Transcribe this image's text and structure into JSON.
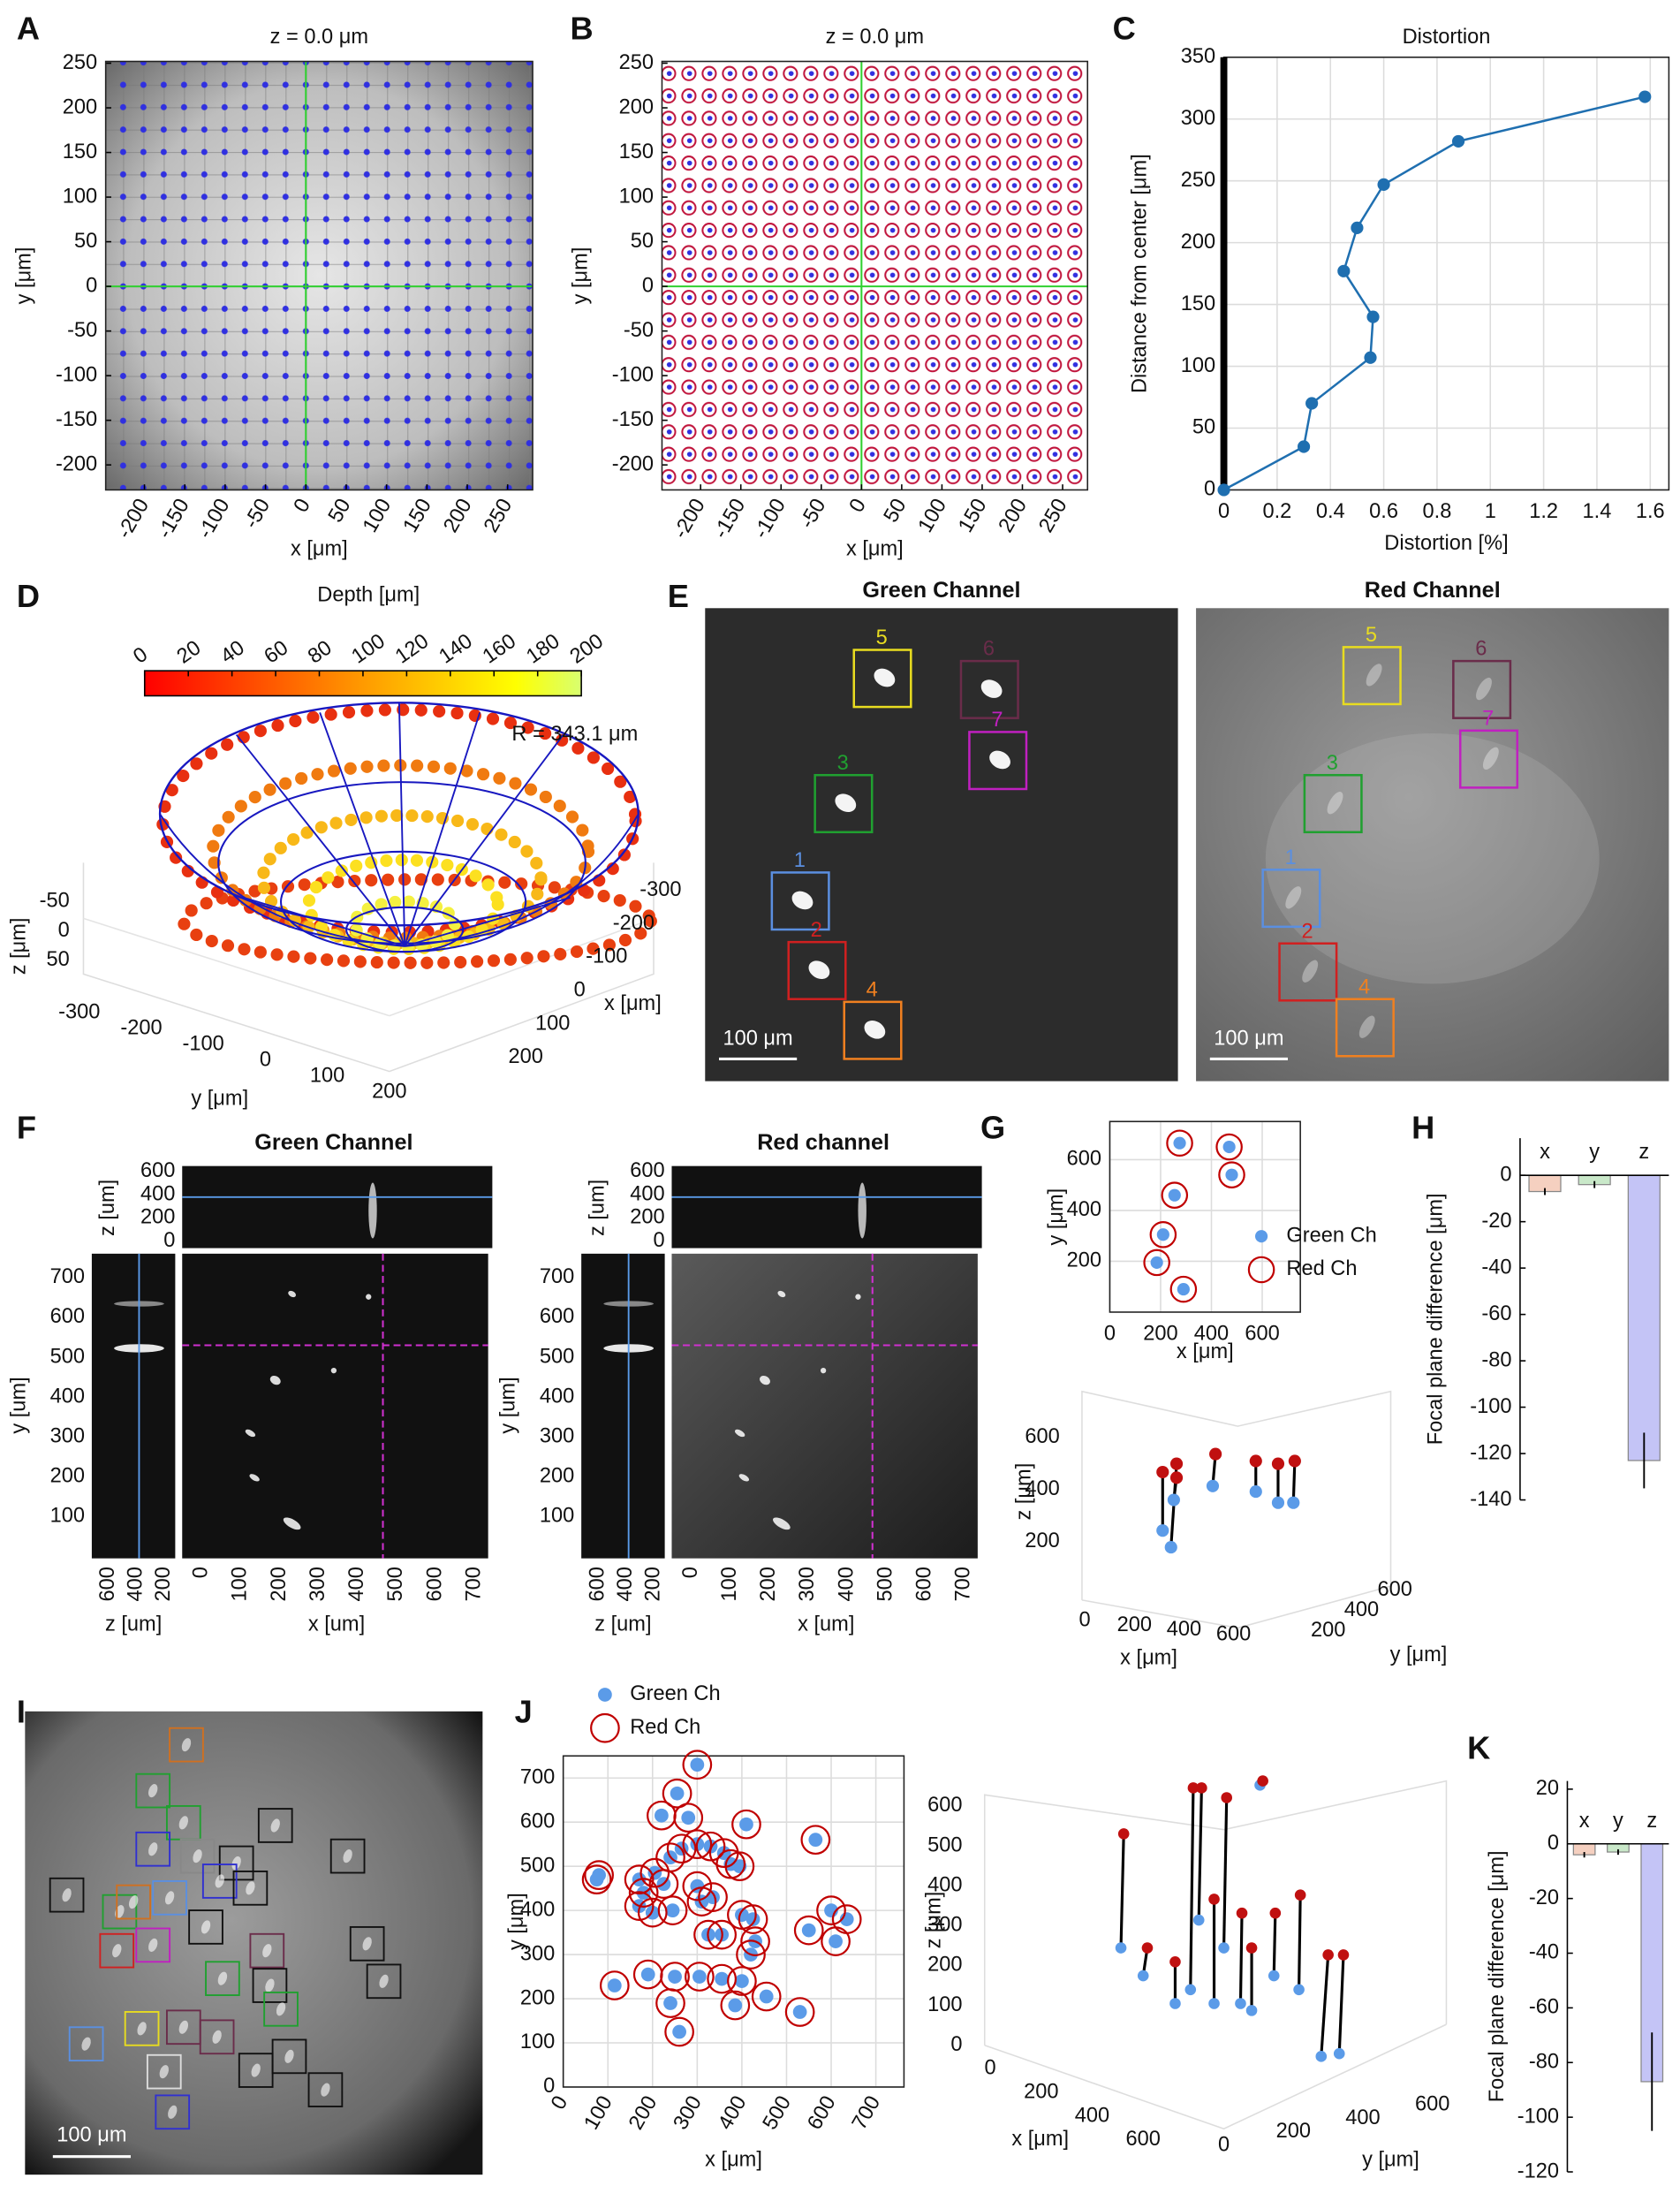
{
  "chart_data": [
    {
      "type": "image",
      "panel": "A",
      "title": "z = 0.0 μm",
      "xlabel": "x [μm]",
      "ylabel": "y [μm]",
      "xlim": [
        -248,
        281
      ],
      "ylim": [
        -228,
        252
      ],
      "xticks": [
        -200,
        -150,
        -100,
        -50,
        0,
        50,
        100,
        150,
        200,
        250
      ],
      "yticks": [
        -200,
        -150,
        -100,
        -50,
        0,
        50,
        100,
        150,
        200,
        250
      ]
    },
    {
      "type": "image",
      "panel": "B",
      "title": "z = 0.0 μm",
      "xlabel": "x [μm]",
      "ylabel": "y [μm]",
      "xlim": [
        -248,
        281
      ],
      "ylim": [
        -228,
        252
      ],
      "xticks": [
        -200,
        -150,
        -100,
        -50,
        0,
        50,
        100,
        150,
        200,
        250
      ],
      "yticks": [
        -200,
        -150,
        -100,
        -50,
        0,
        50,
        100,
        150,
        200,
        250
      ]
    },
    {
      "type": "line",
      "panel": "C",
      "title": "Distortion",
      "xlabel": "Distortion [%]",
      "ylabel": "Distance from center [μm]",
      "x": [
        0,
        0.3,
        0.33,
        0.55,
        0.56,
        0.45,
        0.5,
        0.6,
        0.88,
        1.58
      ],
      "values": [
        0,
        35,
        70,
        107,
        140,
        177,
        212,
        247,
        282,
        318
      ],
      "color": "#1f6fb0",
      "xlim": [
        0,
        1.67
      ],
      "ylim": [
        0,
        350
      ],
      "xticks": [
        0,
        0.2,
        0.4,
        0.6,
        0.8,
        1,
        1.2,
        1.4,
        1.6
      ],
      "yticks": [
        0,
        50,
        100,
        150,
        200,
        250,
        300,
        350
      ],
      "grid": true
    },
    {
      "type": "scatter3d",
      "panel": "D",
      "colorbar_title": "Depth [μm]",
      "colorbar_ticks": [
        0,
        20,
        40,
        60,
        80,
        100,
        120,
        140,
        160,
        180,
        200
      ],
      "colorbar_lim": [
        0,
        200
      ],
      "annotation": "R = 343.1 μm",
      "xlabel": "x [μm]",
      "ylabel": "y [μm]",
      "zlabel": "z [μm]",
      "xticks": [
        -300,
        -200,
        -100,
        0,
        100,
        200
      ],
      "yticks": [
        -300,
        -200,
        -100,
        0,
        100,
        200
      ],
      "zticks": [
        -50,
        0,
        50
      ],
      "xlim": [
        -300,
        200
      ],
      "ylim": [
        -300,
        200
      ],
      "zlim": [
        -50,
        50
      ]
    },
    {
      "type": "image",
      "panel": "E",
      "views": [
        {
          "title": "Green Channel",
          "scale_bar": "100 μm",
          "boxes": [
            "5",
            "6",
            "7",
            "3",
            "1",
            "2",
            "4"
          ]
        },
        {
          "title": "Red Channel",
          "scale_bar": "100 μm",
          "boxes": [
            "5",
            "6",
            "7",
            "3",
            "1",
            "2",
            "4"
          ]
        }
      ],
      "box_colors": [
        "#e8dc20",
        "#6a2c4a",
        "#c020c0",
        "#20a030",
        "#5b8fe0",
        "#d02020",
        "#f08020"
      ]
    },
    {
      "type": "image",
      "panel": "F",
      "views": [
        {
          "title": "Green Channel"
        },
        {
          "title": "Red channel"
        }
      ],
      "xlabel": "x [um]",
      "ylabel": "y [um]",
      "zlabel": "z [um]",
      "xlim": [
        -50,
        735
      ],
      "ylim": [
        -5,
        760
      ],
      "zlim": [
        -60,
        648
      ],
      "side_zlim": [
        720,
        120
      ],
      "xticks": [
        0,
        100,
        200,
        300,
        400,
        500,
        600,
        700
      ],
      "yticks": [
        100,
        200,
        300,
        400,
        500,
        600,
        700
      ],
      "zticks": [
        0,
        200,
        400,
        600
      ],
      "side_zticks": [
        200,
        400,
        600
      ],
      "cursor": {
        "x": 465,
        "y": 530,
        "z": 380
      }
    },
    {
      "type": "scatter",
      "panel": "G",
      "xlabel": "x [μm]",
      "ylabel": "y [μm]",
      "xlim": [
        0,
        750
      ],
      "ylim": [
        0,
        750
      ],
      "xticks": [
        0,
        200,
        400,
        600
      ],
      "yticks": [
        200,
        400,
        600
      ],
      "grid": true,
      "legend": "east",
      "series": [
        {
          "name": "Green Ch",
          "color": "#5b9be8",
          "filled": true,
          "x": [
            275,
            470,
            480,
            255,
            210,
            185,
            290
          ],
          "values": [
            665,
            650,
            540,
            460,
            305,
            195,
            90
          ]
        },
        {
          "name": "Red Ch",
          "color": "#c00000",
          "filled": false,
          "x": [
            275,
            470,
            480,
            255,
            210,
            185,
            290
          ],
          "values": [
            665,
            650,
            540,
            460,
            305,
            195,
            90
          ]
        }
      ]
    },
    {
      "type": "scatter3d",
      "xlabel": "x [μm]",
      "ylabel": "y [μm]",
      "zlabel": "z [μm]",
      "xticks": [
        0,
        200,
        400,
        600
      ],
      "yticks": [
        200,
        400,
        600
      ],
      "zticks": [
        200,
        400,
        600
      ],
      "xlim": [
        0,
        600
      ],
      "ylim": [
        200,
        600
      ],
      "zlim": [
        200,
        600
      ]
    },
    {
      "type": "bar",
      "panel": "H",
      "ylabel": "Focal plane difference [μm]",
      "categories": [
        "x",
        "y",
        "z"
      ],
      "values": [
        -7,
        -4,
        -123
      ],
      "errors": [
        1.5,
        1.5,
        12
      ],
      "colors": [
        "#f5d0c0",
        "#c9e8c9",
        "#c4c4f6"
      ],
      "ylim": [
        -140,
        16
      ],
      "yticks": [
        -140,
        -120,
        -100,
        -80,
        -60,
        -40,
        -20,
        0
      ]
    },
    {
      "type": "image",
      "panel": "I",
      "scale_bar": "100 μm"
    },
    {
      "type": "scatter",
      "panel": "J",
      "xlabel": "x [μm]",
      "ylabel": "y [μm]",
      "xlim": [
        0,
        763
      ],
      "ylim": [
        0,
        750
      ],
      "xticks": [
        0,
        100,
        200,
        300,
        400,
        500,
        600,
        700
      ],
      "yticks": [
        0,
        100,
        200,
        300,
        400,
        500,
        600,
        700
      ],
      "grid": true,
      "legend": "north",
      "series": [
        {
          "name": "Green Ch",
          "color": "#5b9be8",
          "filled": true,
          "x": [
            300,
            255,
            220,
            280,
            300,
            265,
            240,
            330,
            360,
            375,
            395,
            410,
            565,
            80,
            75,
            170,
            205,
            225,
            180,
            170,
            200,
            245,
            310,
            335,
            355,
            325,
            400,
            425,
            300,
            600,
            635,
            550,
            610,
            430,
            250,
            305,
            355,
            420,
            400,
            455,
            385,
            240,
            115,
            190,
            260,
            530
          ],
          "values": [
            730,
            665,
            615,
            610,
            550,
            540,
            520,
            545,
            530,
            505,
            500,
            595,
            560,
            480,
            470,
            470,
            485,
            460,
            440,
            410,
            395,
            400,
            420,
            430,
            345,
            345,
            390,
            380,
            455,
            400,
            380,
            355,
            330,
            330,
            250,
            250,
            245,
            300,
            240,
            205,
            185,
            190,
            230,
            255,
            125,
            170
          ]
        },
        {
          "name": "Red Ch",
          "color": "#c00000",
          "filled": false,
          "x": [
            300,
            255,
            220,
            280,
            300,
            265,
            240,
            330,
            360,
            375,
            395,
            410,
            565,
            80,
            75,
            170,
            205,
            225,
            180,
            170,
            200,
            245,
            310,
            335,
            355,
            325,
            400,
            425,
            300,
            600,
            635,
            550,
            610,
            430,
            250,
            305,
            355,
            420,
            400,
            455,
            385,
            240,
            115,
            190,
            260,
            530
          ],
          "values": [
            730,
            665,
            615,
            610,
            550,
            540,
            520,
            545,
            530,
            505,
            500,
            595,
            560,
            480,
            470,
            470,
            485,
            460,
            440,
            410,
            395,
            400,
            420,
            430,
            345,
            345,
            390,
            380,
            455,
            400,
            380,
            355,
            330,
            330,
            250,
            250,
            245,
            300,
            240,
            205,
            185,
            190,
            230,
            255,
            125,
            170
          ]
        }
      ]
    },
    {
      "type": "scatter3d",
      "xlabel": "x [μm]",
      "ylabel": "y [μm]",
      "zlabel": "z [μm]",
      "xticks": [
        0,
        200,
        400,
        600
      ],
      "yticks": [
        0,
        200,
        400,
        600
      ],
      "zticks": [
        0,
        100,
        200,
        300,
        400,
        500,
        600
      ],
      "xlim": [
        0,
        600
      ],
      "ylim": [
        0,
        600
      ],
      "zlim": [
        0,
        600
      ]
    },
    {
      "type": "bar",
      "panel": "K",
      "ylabel": "Focal plane difference [μm]",
      "categories": [
        "x",
        "y",
        "z"
      ],
      "values": [
        -4,
        -3,
        -87
      ],
      "errors": [
        1,
        1,
        18
      ],
      "colors": [
        "#f5d0c0",
        "#c9e8c9",
        "#c4c4f6"
      ],
      "ylim": [
        -120,
        23
      ],
      "yticks": [
        -120,
        -100,
        -80,
        -60,
        -40,
        -20,
        0,
        20
      ]
    }
  ]
}
